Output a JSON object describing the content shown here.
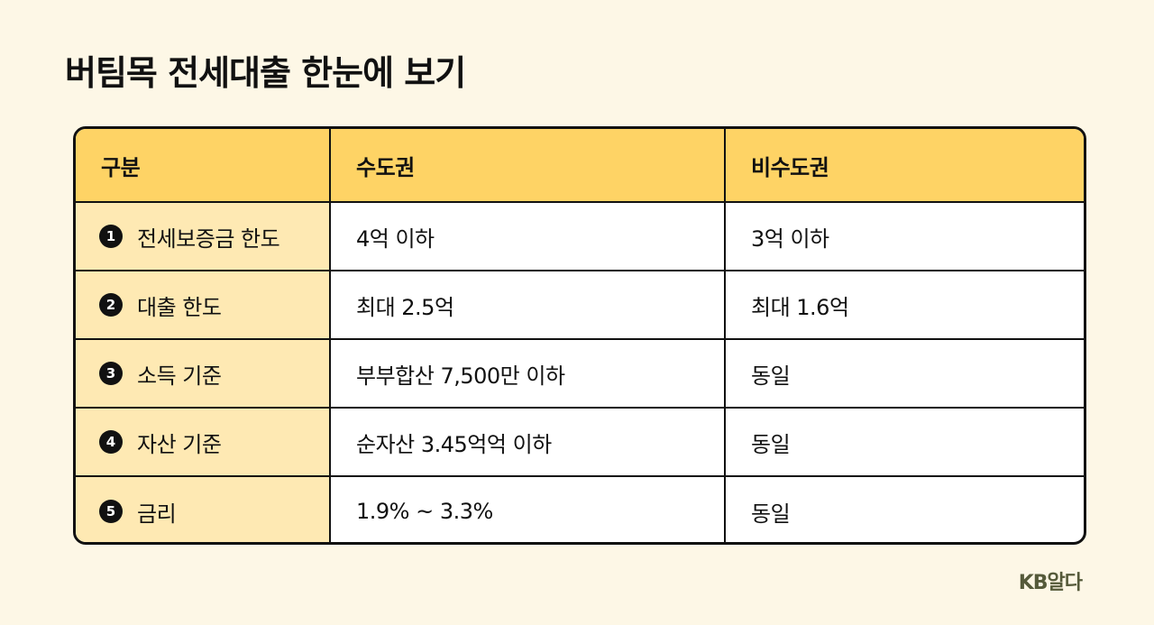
{
  "title": "버팀목 전세대출 한눈에 보기",
  "table": {
    "headers": [
      "구분",
      "수도권",
      "비수도권"
    ],
    "rows": [
      {
        "num": "1",
        "label": "전세보증금 한도",
        "metro": "4억 이하",
        "non_metro": "3억 이하"
      },
      {
        "num": "2",
        "label": "대출 한도",
        "metro": "최대 2.5억",
        "non_metro": "최대 1.6억"
      },
      {
        "num": "3",
        "label": "소득 기준",
        "metro": "부부합산 7,500만 이하",
        "non_metro": "동일"
      },
      {
        "num": "4",
        "label": "자산 기준",
        "metro": "순자산 3.45억억 이하",
        "non_metro": "동일"
      },
      {
        "num": "5",
        "label": "금리",
        "metro": "1.9% ~ 3.3%",
        "non_metro": "동일"
      }
    ]
  },
  "logo": "KB알다",
  "colors": {
    "background": "#fdf7e6",
    "header_fill": "#fed365",
    "row_label_fill": "#fee9b3",
    "border": "#111111"
  }
}
